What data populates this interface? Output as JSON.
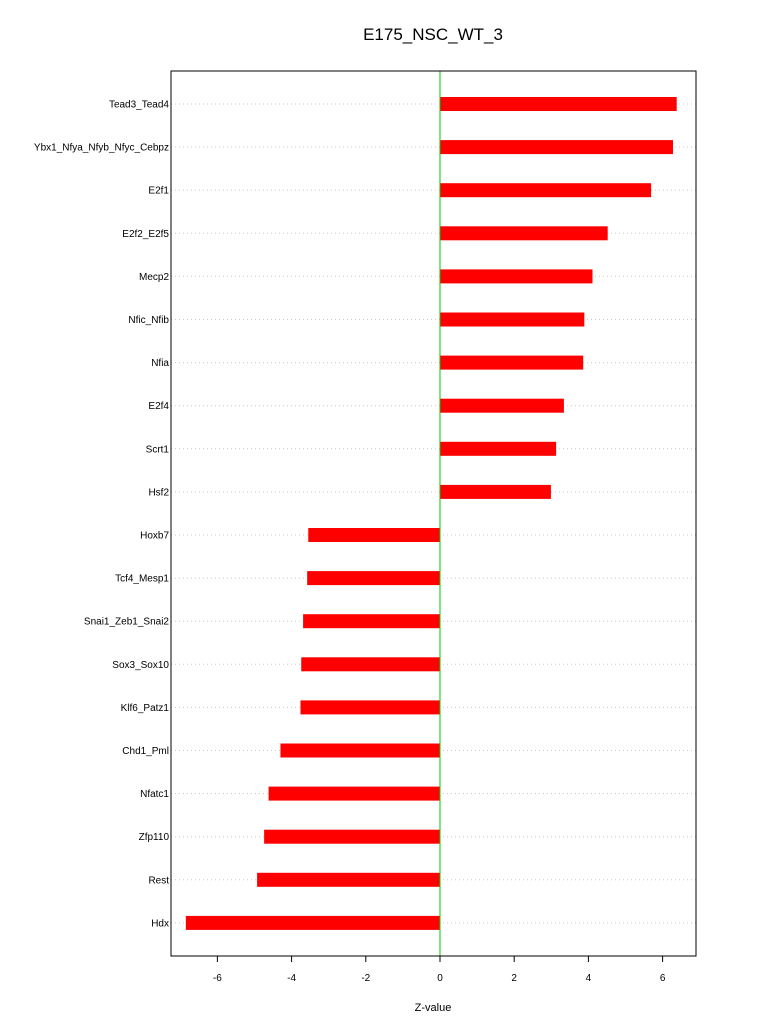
{
  "chart_data": {
    "type": "bar",
    "orientation": "horizontal",
    "title": "E175_NSC_WT_3",
    "xlabel": "Z-value",
    "ylabel": "",
    "xlim": [
      -7.25,
      6.9
    ],
    "xticks": [
      -6,
      -4,
      -2,
      0,
      2,
      4,
      6
    ],
    "xtick_labels": [
      "-6",
      "-4",
      "-2",
      "0",
      "2",
      "4",
      "6"
    ],
    "grid": "horizontal dotted",
    "reference_line": 0,
    "categories": [
      "Tead3_Tead4",
      "Ybx1_Nfya_Nfyb_Nfyc_Cebpz",
      "E2f1",
      "E2f2_E2f5",
      "Mecp2",
      "Nfic_Nfib",
      "Nfia",
      "E2f4",
      "Scrt1",
      "Hsf2",
      "Hoxb7",
      "Tcf4_Mesp1",
      "Snai1_Zeb1_Snai2",
      "Sox3_Sox10",
      "Klf6_Patz1",
      "Chd1_Pml",
      "Nfatc1",
      "Zfp110",
      "Rest",
      "Hdx"
    ],
    "values": [
      6.38,
      6.28,
      5.69,
      4.52,
      4.11,
      3.89,
      3.86,
      3.34,
      3.13,
      2.99,
      -3.55,
      -3.58,
      -3.69,
      -3.74,
      -3.76,
      -4.3,
      -4.62,
      -4.74,
      -4.93,
      -6.85
    ],
    "colors": {
      "bar": "#ff0000",
      "zero_line": "#00cc00",
      "grid": "#c8c8c8",
      "axis": "#000000"
    }
  }
}
